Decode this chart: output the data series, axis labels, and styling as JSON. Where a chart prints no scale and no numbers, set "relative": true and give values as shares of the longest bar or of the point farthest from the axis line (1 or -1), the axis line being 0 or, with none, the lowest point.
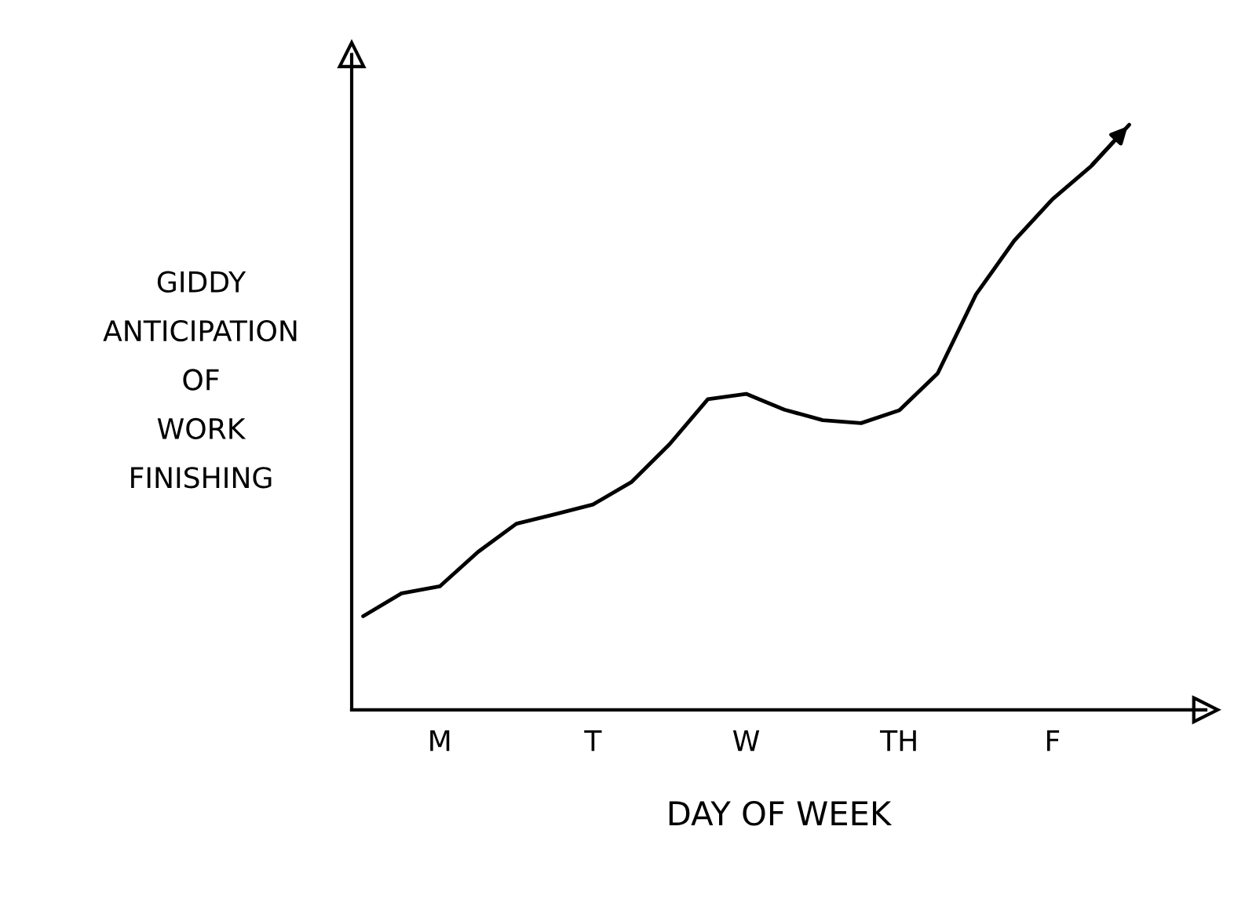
{
  "chart_data": {
    "type": "line",
    "xlabel": "DAY OF WEEK",
    "ylabel": "GIDDY\nANTICIPATION\nOF\nWORK\nFINISHING",
    "relative": true,
    "categories": [
      null,
      null,
      "M",
      null,
      null,
      null,
      "T",
      null,
      null,
      null,
      "W",
      null,
      null,
      null,
      "TH",
      null,
      null,
      null,
      "F",
      null,
      null,
      null,
      null
    ],
    "grid": false,
    "legend": false,
    "marker": "none",
    "line_style": "solid",
    "series": [
      {
        "color": "#000000",
        "values": [
          0.16,
          0.199,
          0.211,
          0.27,
          0.318,
          0.334,
          0.351,
          0.389,
          0.454,
          0.531,
          0.54,
          0.513,
          0.495,
          0.49,
          0.512,
          0.575,
          0.71,
          0.802,
          0.873,
          0.929,
          1.0,
          null,
          null
        ]
      }
    ]
  }
}
